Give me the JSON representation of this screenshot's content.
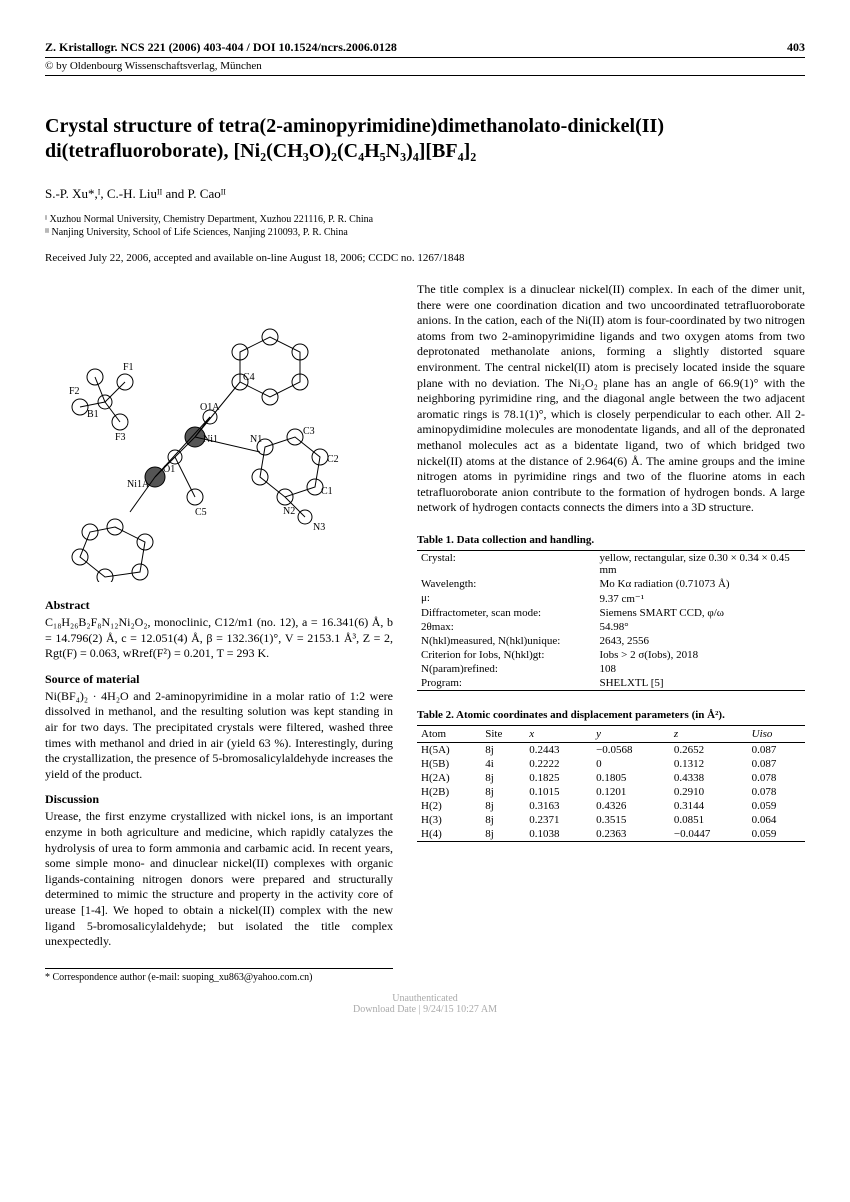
{
  "header": {
    "journal_line": "Z. Kristallogr. NCS 221 (2006) 403-404 / DOI 10.1524/ncrs.2006.0128",
    "page_number": "403",
    "copyright": "© by Oldenbourg Wissenschaftsverlag, München"
  },
  "title": "Crystal structure of tetra(2-aminopyrimidine)dimethanolato-dinickel(II) di(tetrafluoroborate), [Ni₂(CH₃O)₂(C₄H₅N₃)₄][BF₄]₂",
  "authors": "S.-P. Xu*,ᴵ, C.-H. Liuᴵᴵ and P. Caoᴵᴵ",
  "affiliations": [
    "ᴵ  Xuzhou Normal University, Chemistry Department, Xuzhou 221116, P. R. China",
    "ᴵᴵ  Nanjing University, School of Life Sciences, Nanjing 210093, P. R. China"
  ],
  "received": "Received July 22, 2006, accepted and available on-line August 18, 2006; CCDC no. 1267/1848",
  "figure_labels": [
    "F1",
    "F2",
    "B1",
    "F3",
    "O1A",
    "Ni1A",
    "O1",
    "C5",
    "Ni1",
    "C4",
    "N1",
    "C3",
    "C2",
    "C1",
    "N3",
    "N2"
  ],
  "abstract": {
    "heading": "Abstract",
    "body": "C₁₈H₂₆B₂F₈N₁₂Ni₂O₂, monoclinic, C12/m1 (no. 12), a = 16.341(6) Å, b = 14.796(2) Å, c = 12.051(4) Å, β = 132.36(1)°, V = 2153.1 Å³, Z = 2, Rgt(F) = 0.063, wRref(F²) = 0.201, T = 293 K."
  },
  "source": {
    "heading": "Source of material",
    "body": "Ni(BF₄)₂ · 4H₂O and 2-aminopyrimidine in a molar ratio of 1:2 were dissolved in methanol, and the resulting solution was kept standing in air for two days. The precipitated crystals were filtered, washed three times with methanol and dried in air (yield 63 %). Interestingly, during the crystallization, the presence of 5-bromosalicylaldehyde increases the yield of the product."
  },
  "discussion": {
    "heading": "Discussion",
    "left_body": "Urease, the first enzyme crystallized with nickel ions, is an important enzyme in both agriculture and medicine, which rapidly catalyzes the hydrolysis of urea to form ammonia and carbamic acid. In recent years, some simple mono- and dinuclear nickel(II) complexes with organic ligands-containing nitrogen donors were prepared and structurally determined to mimic the structure and property in the activity core of urease [1-4]. We hoped to obtain a nickel(II) complex with the new ligand 5-bromosalicylaldehyde; but isolated the title complex unexpectedly.",
    "right_body": "The title complex is a dinuclear nickel(II) complex. In each of the dimer unit, there were one coordination dication and two uncoordinated tetrafluoroborate anions. In the cation, each of the Ni(II) atom is four-coordinated by two nitrogen atoms from two 2-aminopyrimidine ligands and two oxygen atoms from two deprotonated methanolate anions, forming a slightly distorted square environment. The central nickel(II) atom is precisely located inside the square plane with no deviation. The Ni₂O₂ plane has an angle of 66.9(1)° with the neighboring pyrimidine ring, and the diagonal angle between the two adjacent aromatic rings is 78.1(1)°, which is closely perpendicular to each other. All 2-aminopydimidine molecules are monodentate ligands, and all of the depronated methanol molecules act as a bidentate ligand, two of which bridged two nickel(II) atoms at the distance of 2.964(6) Å. The amine groups and the imine nitrogen atoms in pyrimidine rings and two of the fluorine atoms in each tetrafluoroborate anion contribute to the formation of hydrogen bonds. A large network of hydrogen contacts connects the dimers into a 3D structure."
  },
  "table1": {
    "caption": "Table 1. Data collection and handling.",
    "rows": [
      [
        "Crystal:",
        "yellow, rectangular, size 0.30 × 0.34 × 0.45 mm"
      ],
      [
        "Wavelength:",
        "Mo Kα radiation (0.71073 Å)"
      ],
      [
        "μ:",
        "9.37 cm⁻¹"
      ],
      [
        "Diffractometer, scan mode:",
        "Siemens SMART CCD, φ/ω"
      ],
      [
        "2θmax:",
        "54.98°"
      ],
      [
        "N(hkl)measured, N(hkl)unique:",
        "2643, 2556"
      ],
      [
        "Criterion for Iobs, N(hkl)gt:",
        "Iobs > 2 σ(Iobs), 2018"
      ],
      [
        "N(param)refined:",
        "108"
      ],
      [
        "Program:",
        "SHELXTL [5]"
      ]
    ]
  },
  "table2": {
    "caption": "Table 2. Atomic coordinates and displacement parameters (in Å²).",
    "columns": [
      "Atom",
      "Site",
      "x",
      "y",
      "z",
      "Uiso"
    ],
    "rows": [
      [
        "H(5A)",
        "8j",
        "0.2443",
        "−0.0568",
        "0.2652",
        "0.087"
      ],
      [
        "H(5B)",
        "4i",
        "0.2222",
        "0",
        "0.1312",
        "0.087"
      ],
      [
        "H(2A)",
        "8j",
        "0.1825",
        "0.1805",
        "0.4338",
        "0.078"
      ],
      [
        "H(2B)",
        "8j",
        "0.1015",
        "0.1201",
        "0.2910",
        "0.078"
      ],
      [
        "H(2)",
        "8j",
        "0.3163",
        "0.4326",
        "0.3144",
        "0.059"
      ],
      [
        "H(3)",
        "8j",
        "0.2371",
        "0.3515",
        "0.0851",
        "0.064"
      ],
      [
        "H(4)",
        "8j",
        "0.1038",
        "0.2363",
        "−0.0447",
        "0.059"
      ]
    ]
  },
  "footer": "*  Correspondence author (e-mail: suoping_xu863@yahoo.com.cn)",
  "watermark": {
    "line1": "Unauthenticated",
    "line2": "Download Date | 9/24/15 10:27 AM"
  }
}
